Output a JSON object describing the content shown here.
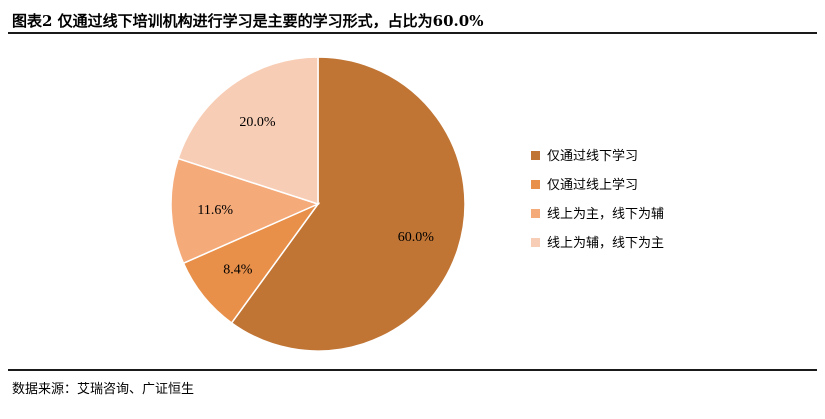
{
  "header": {
    "title": "图表2 仅通过线下培训机构进行学习是主要的学习形式，占比为60.0%"
  },
  "footer": {
    "source": "数据来源：艾瑞咨询、广证恒生"
  },
  "chart_data": {
    "type": "pie",
    "title": "",
    "categories": [
      "仅通过线下学习",
      "仅通过线上学习",
      "线上为主，线下为辅",
      "线上为辅，线下为主"
    ],
    "values": [
      60.0,
      8.4,
      11.6,
      20.0
    ],
    "labels": [
      "60.0%",
      "8.4%",
      "11.6%",
      "20.0%"
    ],
    "colors": [
      "#C07535",
      "#E8904A",
      "#F5AA7A",
      "#F8CDB5"
    ],
    "start": "top",
    "direction": "clockwise",
    "legend_position": "right"
  }
}
